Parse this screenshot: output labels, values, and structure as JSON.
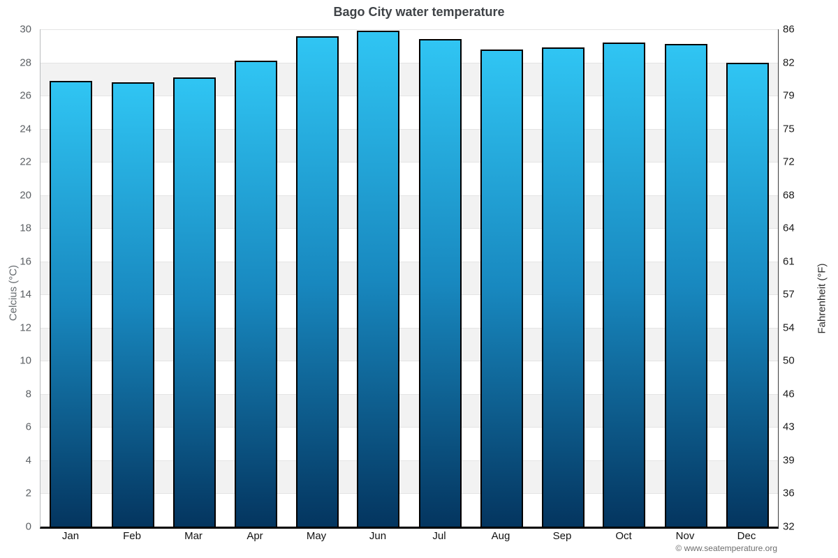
{
  "title": "Bago City water temperature",
  "footer": "© www.seatemperature.org",
  "chart_data": {
    "type": "bar",
    "title": "Bago City water temperature",
    "categories": [
      "Jan",
      "Feb",
      "Mar",
      "Apr",
      "May",
      "Jun",
      "Jul",
      "Aug",
      "Sep",
      "Oct",
      "Nov",
      "Dec"
    ],
    "values": [
      26.9,
      26.8,
      27.1,
      28.1,
      29.6,
      29.9,
      29.4,
      28.8,
      28.9,
      29.2,
      29.1,
      28.0
    ],
    "ylabel_left": "Celcius (°C)",
    "ylabel_right": "Fahrenheit (°F)",
    "ylim": [
      0,
      30
    ],
    "yticks_celsius": [
      30,
      28,
      26,
      24,
      22,
      20,
      18,
      16,
      14,
      12,
      10,
      8,
      6,
      4,
      2,
      0
    ],
    "yticks_fahrenheit": [
      86,
      82,
      79,
      75,
      72,
      68,
      64,
      61,
      57,
      54,
      50,
      46,
      43,
      39,
      36,
      32
    ],
    "grid": "alternating-bands",
    "legend": "none",
    "colors": {
      "bar_top": "#30c5f3",
      "bar_mid": "#1888bf",
      "bar_bottom": "#04355f",
      "bar_border": "#000000",
      "band_gray": "#f2f2f2",
      "band_white": "#ffffff"
    }
  }
}
